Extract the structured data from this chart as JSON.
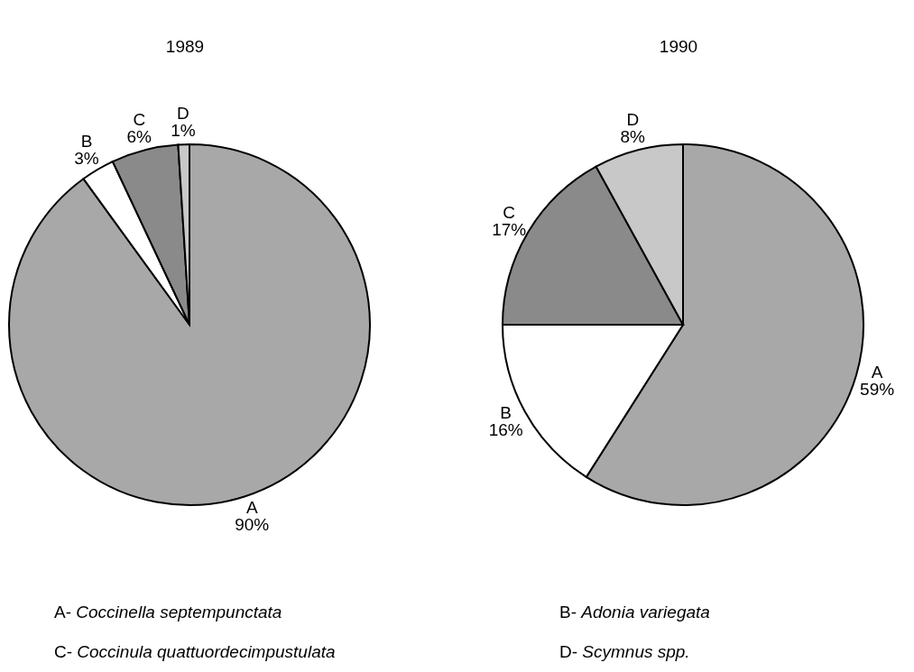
{
  "chart_data": [
    {
      "type": "pie",
      "title": "1989",
      "categories": [
        "A",
        "B",
        "C",
        "D"
      ],
      "values": [
        90,
        3,
        6,
        1
      ],
      "value_labels": [
        "90%",
        "3%",
        "6%",
        "1%"
      ],
      "colors": [
        "#a8a8a8",
        "#ffffff",
        "#8a8a8a",
        "#c8c8c8"
      ]
    },
    {
      "type": "pie",
      "title": "1990",
      "categories": [
        "A",
        "B",
        "C",
        "D"
      ],
      "values": [
        59,
        16,
        17,
        8
      ],
      "value_labels": [
        "59%",
        "16%",
        "17%",
        "8%"
      ],
      "colors": [
        "#a8a8a8",
        "#ffffff",
        "#8a8a8a",
        "#c8c8c8"
      ]
    },
    {
      "type": "other",
      "annotations": [
        "A- Coccinella septempunctata",
        "B- Adonia variegata",
        "C- Coccinula quattuordecimpustulata",
        "D- Scymnus spp."
      ]
    }
  ]
}
